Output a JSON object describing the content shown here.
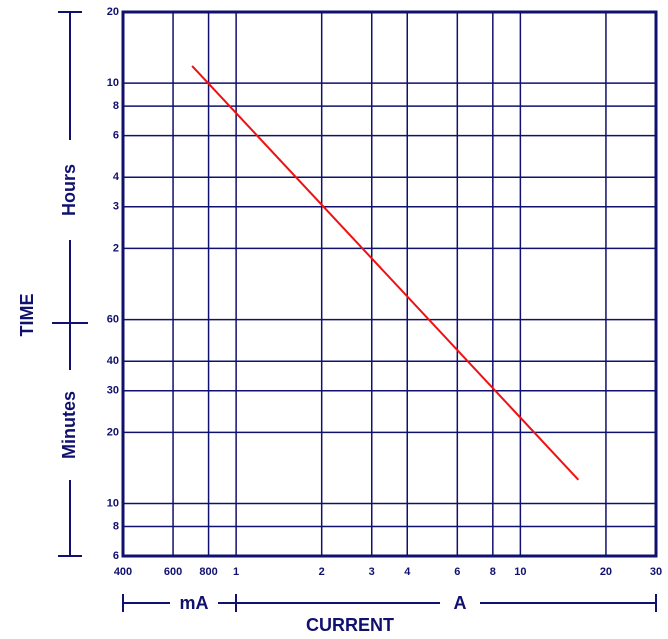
{
  "chart_data": {
    "type": "line",
    "xlabel": "CURRENT",
    "ylabel": "TIME",
    "x_unit_labels": [
      "mA",
      "A"
    ],
    "y_unit_labels": [
      "Minutes",
      "Hours"
    ],
    "xscale": "log",
    "yscale": "log",
    "grid": true,
    "color": "#10106e",
    "xlim": [
      0.4,
      30
    ],
    "xticks": [
      {
        "value": 0.4,
        "label": "400"
      },
      {
        "value": 0.6,
        "label": "600"
      },
      {
        "value": 0.8,
        "label": "800"
      },
      1,
      2,
      3,
      4,
      6,
      8,
      10,
      20,
      30
    ],
    "ylim": [
      6,
      1200
    ],
    "yticks": [
      6,
      8,
      10,
      20,
      30,
      40,
      60,
      {
        "value": 120,
        "label": "2"
      },
      {
        "value": 180,
        "label": "3"
      },
      {
        "value": 240,
        "label": "4"
      },
      {
        "value": 360,
        "label": "6"
      },
      {
        "value": 480,
        "label": "8"
      },
      {
        "value": 600,
        "label": "10"
      },
      {
        "value": 1200,
        "label": "20"
      }
    ],
    "series": [
      {
        "color": "#ee1111",
        "x": [
          0.7,
          16
        ],
        "values": [
          710,
          12.6
        ]
      }
    ]
  }
}
